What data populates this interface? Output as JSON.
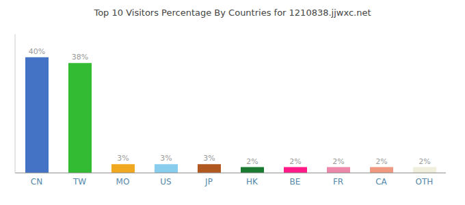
{
  "chart_data": {
    "type": "bar",
    "title": "Top 10 Visitors Percentage By Countries for 1210838.jjwxc.net",
    "categories": [
      "CN",
      "TW",
      "MO",
      "US",
      "JP",
      "HK",
      "BE",
      "FR",
      "CA",
      "OTH"
    ],
    "values": [
      40,
      38,
      3,
      3,
      3,
      2,
      2,
      2,
      2,
      2
    ],
    "value_labels": [
      "40%",
      "38%",
      "3%",
      "3%",
      "3%",
      "2%",
      "2%",
      "2%",
      "2%",
      "2%"
    ],
    "colors": [
      "#4472c4",
      "#33bb33",
      "#f0a820",
      "#88ccee",
      "#b05820",
      "#1a7a30",
      "#ff1a88",
      "#ee88aa",
      "#ee9980",
      "#f0eedc"
    ],
    "ylim": [
      0,
      48
    ],
    "data_labels": true,
    "tick_labels": "x",
    "grid": false
  }
}
